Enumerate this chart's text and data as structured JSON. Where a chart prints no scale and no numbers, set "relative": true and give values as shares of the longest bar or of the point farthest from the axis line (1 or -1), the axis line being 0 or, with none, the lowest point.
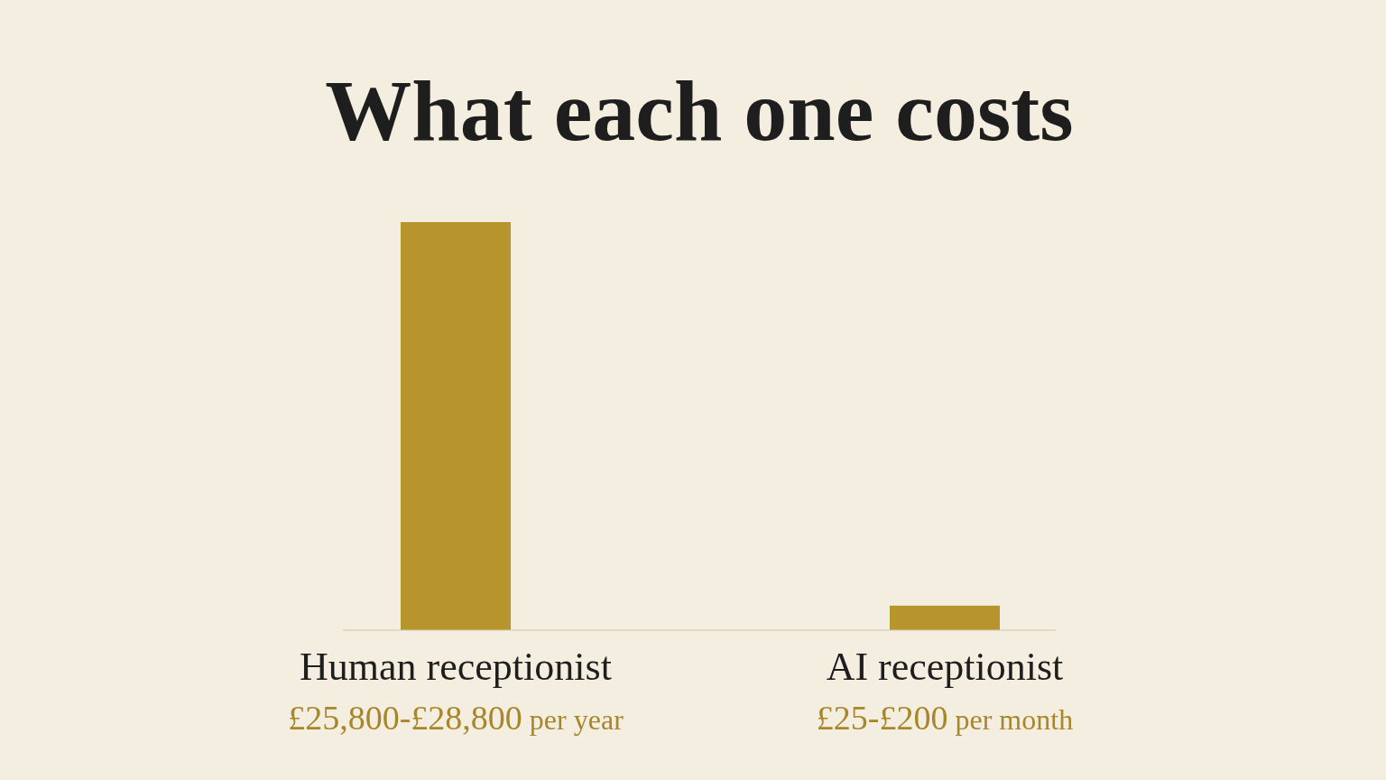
{
  "chart_data": {
    "type": "bar",
    "title": "What each one costs",
    "categories": [
      "Human receptionist",
      "AI receptionist"
    ],
    "values": [
      1,
      0.06
    ],
    "annotations": [
      "£25,800-£28,800 per year",
      "£25-£200 per month"
    ],
    "color": "#b8952c",
    "relative": true
  }
}
